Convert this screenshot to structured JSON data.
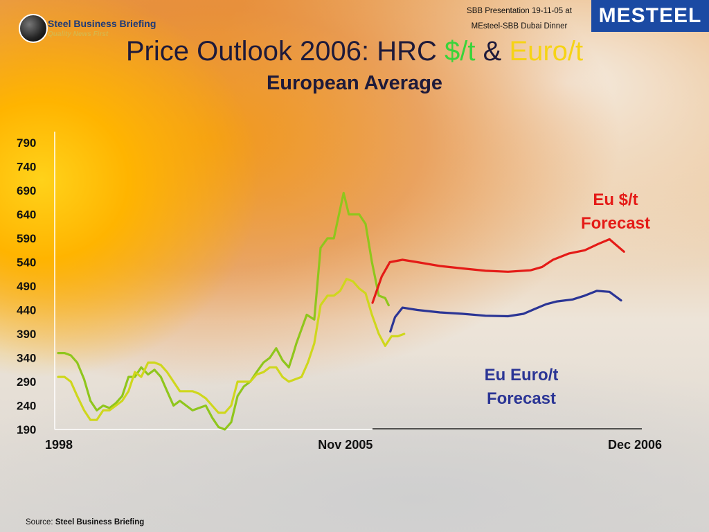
{
  "logo": {
    "name": "Steel Business Briefing",
    "tagline": "Quality News First"
  },
  "presentation": {
    "line1": "SBB Presentation 19-11-05 at",
    "line2": "MEsteel-SBB Dubai Dinner"
  },
  "brand": {
    "name": "MESTEEL"
  },
  "slide": {
    "title_main": "Price Outlook 2006: HRC ",
    "title_dollar": "$/t",
    "title_amp": " & ",
    "title_euro": "Euro/t",
    "subtitle": "European Average"
  },
  "source": {
    "prefix": "Source: ",
    "name": "Steel Business Briefing"
  },
  "colors": {
    "dollar_hist": "#8fc61c",
    "euro_hist": "#cfd71c",
    "dollar_forecast": "#e41b17",
    "euro_forecast": "#2b3595"
  },
  "chart_data": {
    "type": "line",
    "x_axis": "time index 0 (1998) to 100 (Dec 2006); Nov 2005 at 49.8",
    "ylim": [
      190,
      790
    ],
    "yticks": [
      190,
      240,
      290,
      340,
      390,
      440,
      490,
      540,
      590,
      640,
      690,
      740,
      790
    ],
    "xtick_labels": [
      {
        "label": "1998",
        "x": 0
      },
      {
        "label": "Nov 2005",
        "x": 49.8
      },
      {
        "label": "Dec 2006",
        "x": 100
      }
    ],
    "annotations": [
      {
        "lines": [
          "Eu $/t",
          "Forecast"
        ],
        "color": "#e41b17"
      },
      {
        "lines": [
          "Eu Euro/t",
          "Forecast"
        ],
        "color": "#2b3595"
      }
    ],
    "series": [
      {
        "name": "Eu $/t",
        "color": "#8fc61c",
        "x": [
          0,
          1.1,
          2.2,
          3.3,
          4.5,
          5.6,
          6.7,
          7.8,
          8.9,
          10,
          11.1,
          12.2,
          13.3,
          14.4,
          15.6,
          16.7,
          17.8,
          18.9,
          20,
          21.1,
          22.2,
          23.3,
          24.4,
          25.6,
          26.7,
          27.8,
          28.9,
          30,
          31.1,
          32.2,
          33.3,
          34.4,
          35.6,
          36.7,
          37.8,
          38.9,
          40,
          40.8,
          41.3,
          42.2,
          43.1,
          44.4,
          45.5,
          46.7,
          47.8,
          48.6,
          49.5,
          50.4,
          51.1
        ],
        "y": [
          350,
          350,
          345,
          330,
          295,
          250,
          230,
          240,
          235,
          245,
          260,
          300,
          300,
          320,
          305,
          315,
          300,
          270,
          240,
          250,
          240,
          230,
          235,
          240,
          215,
          195,
          190,
          205,
          260,
          280,
          290,
          310,
          330,
          340,
          360,
          335,
          320,
          350,
          370,
          400,
          430,
          420,
          570,
          590,
          590,
          635,
          685,
          640,
          640
        ]
      },
      {
        "name": "Eu $/t (cont.)",
        "color": "#8fc61c",
        "x": [
          51.1,
          52.2,
          53.3,
          54.4,
          55.6,
          56.7,
          57.3
        ],
        "y": [
          640,
          640,
          620,
          540,
          470,
          465,
          450
        ]
      },
      {
        "name": "Eu Euro/t",
        "color": "#cfd71c",
        "x": [
          0,
          1.1,
          2.2,
          3.3,
          4.5,
          5.6,
          6.7,
          7.8,
          8.9,
          10,
          11.1,
          12.2,
          13.3,
          14.4,
          15.6,
          16.7,
          17.8,
          18.9,
          20,
          21.1,
          22.2,
          23.3,
          24.4,
          25.6,
          26.7,
          27.8,
          28.9,
          30,
          31.1,
          32.2,
          33.3,
          34.4,
          35.6,
          36.7,
          37.8,
          38.9,
          40,
          41.1,
          42.2,
          43.3,
          44.4,
          45.5,
          46.7,
          47.8,
          48.9,
          50,
          51.1,
          52.2,
          53.3,
          54.4,
          55.6,
          56.7,
          57.8,
          58.9,
          60
        ],
        "y": [
          300,
          300,
          290,
          260,
          230,
          210,
          210,
          230,
          230,
          240,
          250,
          270,
          310,
          300,
          330,
          330,
          325,
          310,
          290,
          270,
          270,
          270,
          265,
          255,
          240,
          225,
          225,
          240,
          290,
          290,
          290,
          305,
          310,
          320,
          320,
          300,
          290,
          295,
          300,
          330,
          370,
          450,
          470,
          470,
          480,
          505,
          500,
          485,
          475,
          430,
          390,
          365,
          385,
          385,
          390
        ]
      },
      {
        "name": "Eu $/t Forecast",
        "color": "#e41b17",
        "x": [
          54.5,
          56.1,
          57.5,
          59.7,
          62.3,
          66.2,
          70.1,
          74.1,
          78,
          81.9,
          83.9,
          85.8,
          88.5,
          91.3,
          93.6,
          95.6,
          98.1
        ],
        "y": [
          455,
          510,
          540,
          545,
          540,
          532,
          527,
          522,
          520,
          523,
          530,
          545,
          558,
          565,
          578,
          588,
          562
        ]
      },
      {
        "name": "Eu Euro/t Forecast",
        "color": "#2b3595",
        "x": [
          57.6,
          58.4,
          59.7,
          62.3,
          66.2,
          70.1,
          74.1,
          78,
          80.7,
          82.6,
          84.6,
          86.5,
          89.2,
          91.3,
          93.4,
          95.6,
          97.6
        ],
        "y": [
          395,
          425,
          445,
          440,
          435,
          432,
          428,
          427,
          432,
          442,
          452,
          458,
          462,
          470,
          480,
          478,
          460
        ]
      }
    ]
  }
}
